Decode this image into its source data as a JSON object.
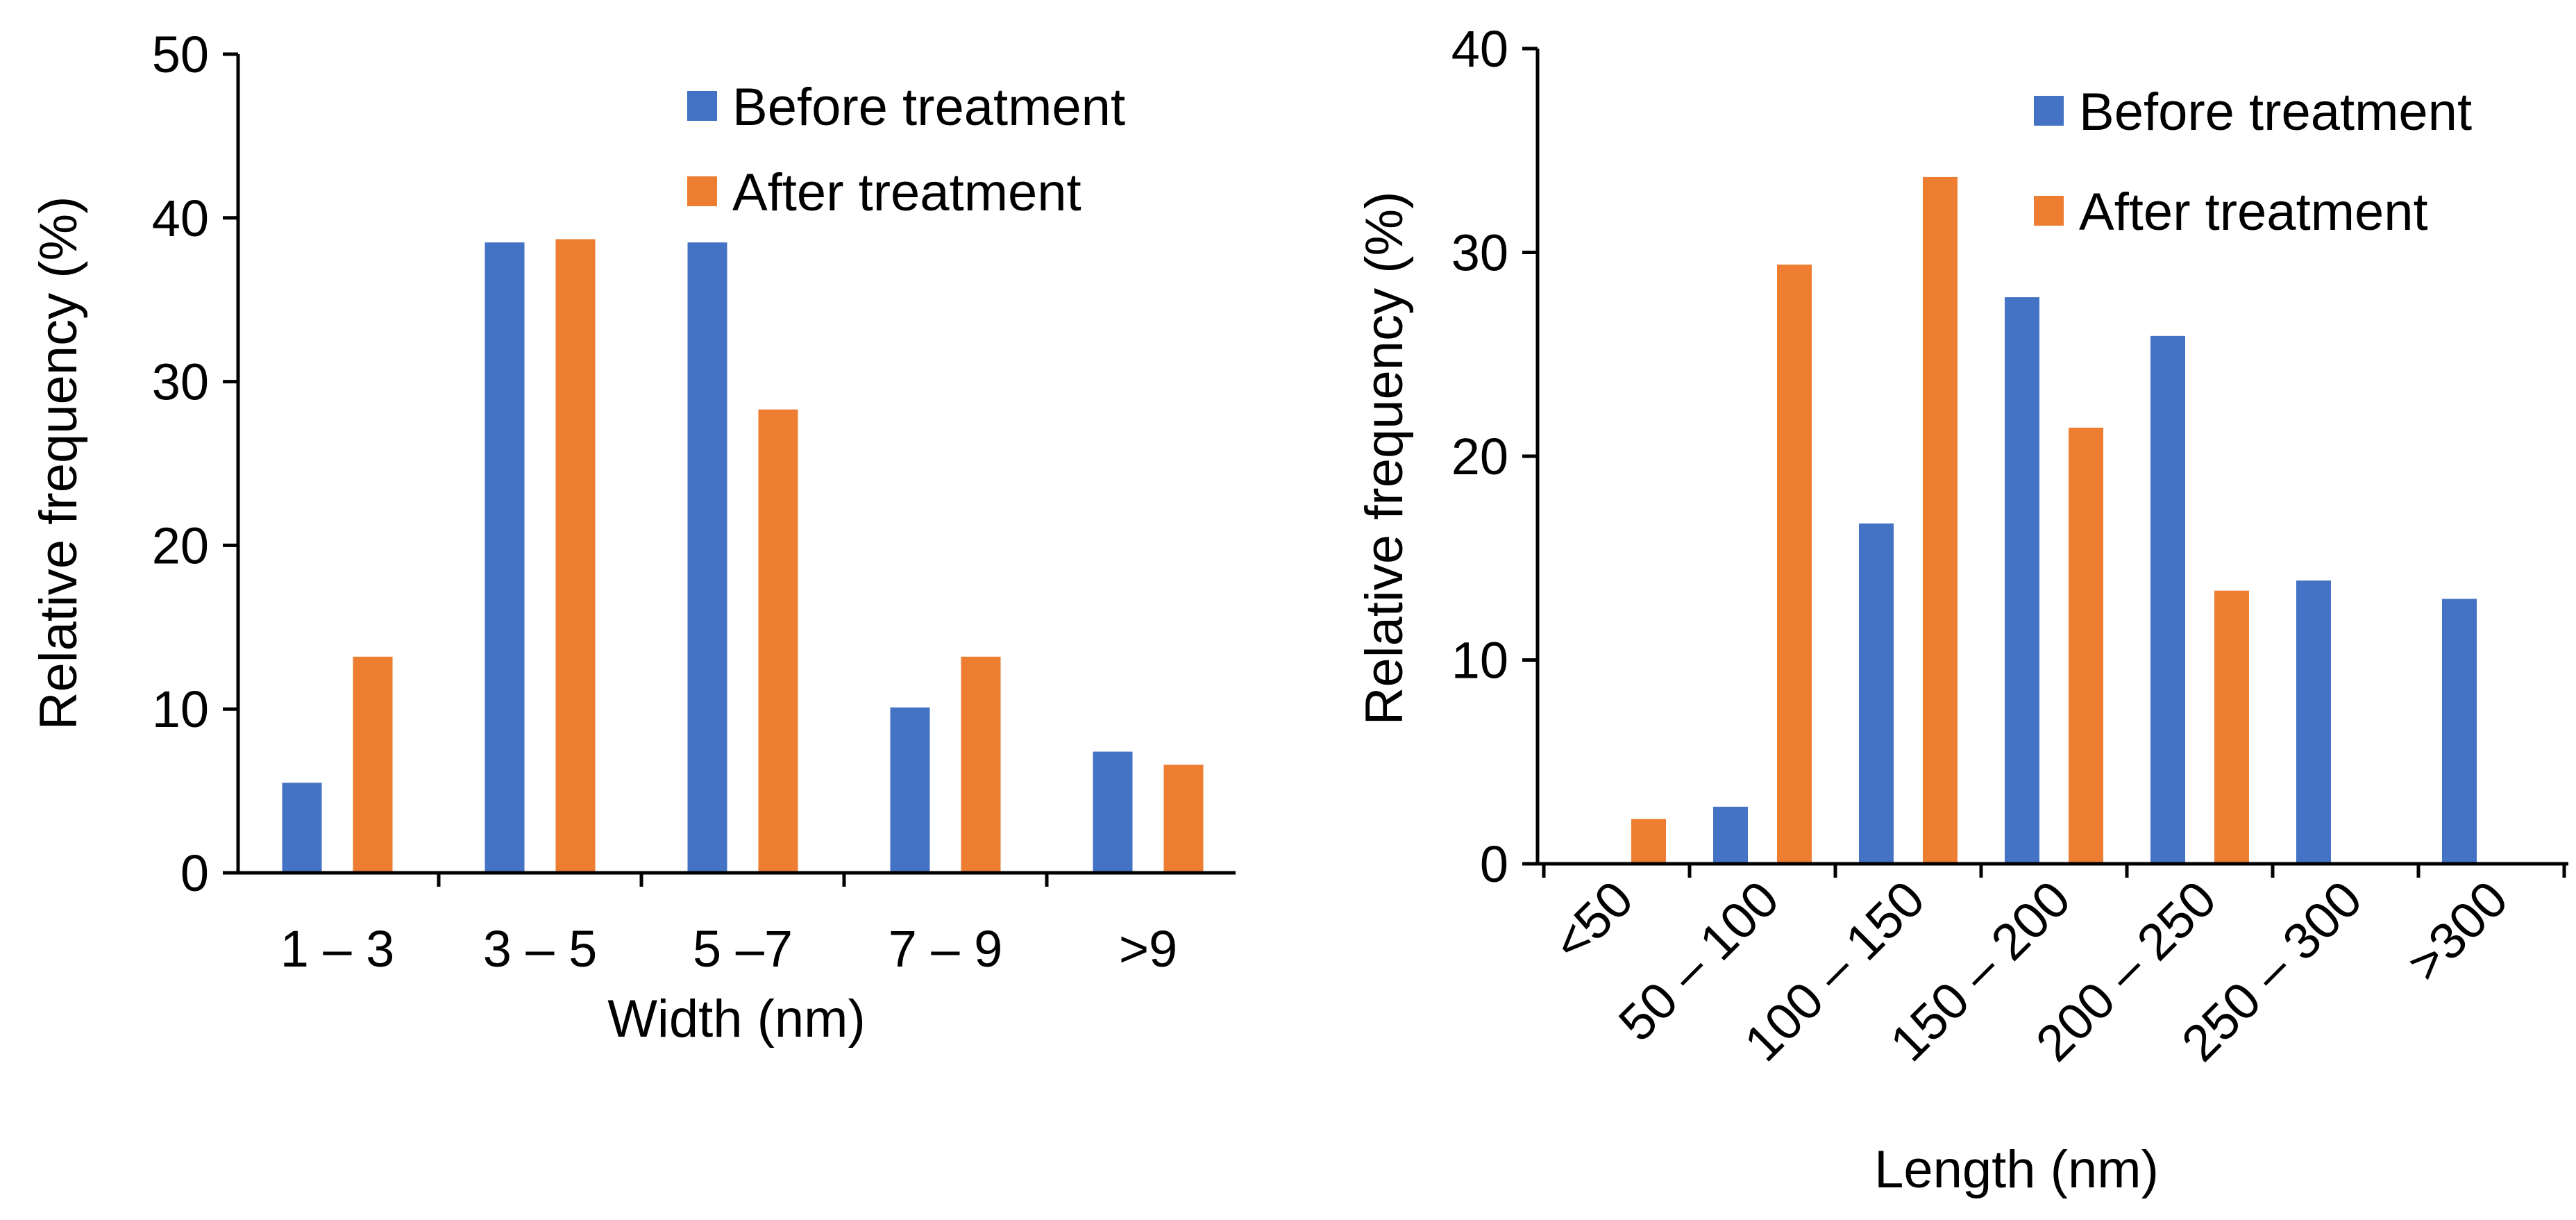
{
  "chart_data": [
    {
      "type": "bar",
      "title": "",
      "xlabel": "Width (nm)",
      "ylabel": "Relative frequency (%)",
      "ylim": [
        0,
        50
      ],
      "yticks": [
        "0",
        "10",
        "20",
        "30",
        "40",
        "50"
      ],
      "categories": [
        "1 – 3",
        "3 – 5",
        "5 –7",
        "7 – 9",
        ">9"
      ],
      "series": [
        {
          "name": "Before treatment",
          "color": "#4472C4",
          "values": [
            5.5,
            38.5,
            38.5,
            10.1,
            7.4
          ]
        },
        {
          "name": "After treatment",
          "color": "#ED7D31",
          "values": [
            13.2,
            38.7,
            28.3,
            13.2,
            6.6
          ]
        }
      ],
      "grid": false,
      "legend": "top-right"
    },
    {
      "type": "bar",
      "title": "",
      "xlabel": "Length (nm)",
      "ylabel": "Relative frequency (%)",
      "ylim": [
        0,
        40
      ],
      "yticks": [
        "0",
        "10",
        "20",
        "30",
        "40"
      ],
      "categories": [
        "<50",
        "50 – 100",
        "100 – 150",
        "150 – 200",
        "200 – 250",
        "250 – 300",
        ">300"
      ],
      "series": [
        {
          "name": "Before treatment",
          "color": "#4472C4",
          "values": [
            0,
            2.8,
            16.7,
            27.8,
            25.9,
            13.9,
            13.0
          ]
        },
        {
          "name": "After treatment",
          "color": "#ED7D31",
          "values": [
            2.2,
            29.4,
            33.7,
            21.4,
            13.4,
            0,
            0
          ]
        }
      ],
      "grid": false,
      "legend": "top-right"
    }
  ]
}
